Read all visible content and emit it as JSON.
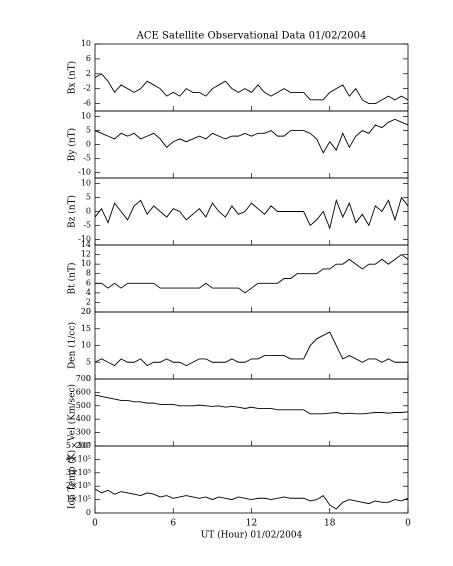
{
  "chart_data": [
    {
      "type": "line",
      "title": "ACE Satellite Observational Data   01/02/2004",
      "ylabel": "Bx (nT)",
      "ylim": [
        -8,
        10
      ],
      "yticks": [
        -6,
        -2,
        2,
        6,
        10
      ],
      "xlim": [
        0,
        24
      ],
      "x": [
        0,
        0.5,
        1,
        1.5,
        2,
        2.5,
        3,
        3.5,
        4,
        4.5,
        5,
        5.5,
        6,
        6.5,
        7,
        7.5,
        8,
        8.5,
        9,
        9.5,
        10,
        10.5,
        11,
        11.5,
        12,
        12.5,
        13,
        13.5,
        14,
        14.5,
        15,
        15.5,
        16,
        16.5,
        17,
        17.5,
        18,
        18.5,
        19,
        19.5,
        20,
        20.5,
        21,
        21.5,
        22,
        22.5,
        23,
        23.5,
        24
      ],
      "values": [
        1,
        2,
        0,
        -3,
        -1,
        -2,
        -3,
        -2,
        0,
        -1,
        -2,
        -4,
        -3,
        -4,
        -2,
        -3,
        -3,
        -4,
        -2,
        -1,
        0,
        -2,
        -3,
        -2,
        -3,
        -1,
        -3,
        -4,
        -3,
        -2,
        -3,
        -3,
        -3,
        -5,
        -5,
        -5,
        -3,
        -2,
        -1,
        -4,
        -2,
        -5,
        -6,
        -6,
        -5,
        -4,
        -5,
        -4,
        -5
      ],
      "color": "#000000"
    },
    {
      "type": "line",
      "ylabel": "By (nT)",
      "ylim": [
        -12,
        12
      ],
      "yticks": [
        -10,
        -5,
        0,
        5,
        10
      ],
      "xlim": [
        0,
        24
      ],
      "x": [
        0,
        0.5,
        1,
        1.5,
        2,
        2.5,
        3,
        3.5,
        4,
        4.5,
        5,
        5.5,
        6,
        6.5,
        7,
        7.5,
        8,
        8.5,
        9,
        9.5,
        10,
        10.5,
        11,
        11.5,
        12,
        12.5,
        13,
        13.5,
        14,
        14.5,
        15,
        15.5,
        16,
        16.5,
        17,
        17.5,
        18,
        18.5,
        19,
        19.5,
        20,
        20.5,
        21,
        21.5,
        22,
        22.5,
        23,
        23.5,
        24
      ],
      "values": [
        5,
        4,
        3,
        2,
        4,
        3,
        4,
        2,
        3,
        4,
        2,
        -1,
        1,
        2,
        1,
        2,
        3,
        2,
        4,
        3,
        2,
        3,
        3,
        4,
        3,
        4,
        4,
        5,
        3,
        3,
        5,
        5,
        5,
        4,
        2,
        -3,
        1,
        -2,
        4,
        -1,
        3,
        5,
        4,
        7,
        6,
        8,
        9,
        8,
        7
      ],
      "color": "#000000"
    },
    {
      "type": "line",
      "ylabel": "Bz (nT)",
      "ylim": [
        -12,
        12
      ],
      "yticks": [
        -10,
        -5,
        0,
        5,
        10
      ],
      "xlim": [
        0,
        24
      ],
      "x": [
        0,
        0.5,
        1,
        1.5,
        2,
        2.5,
        3,
        3.5,
        4,
        4.5,
        5,
        5.5,
        6,
        6.5,
        7,
        7.5,
        8,
        8.5,
        9,
        9.5,
        10,
        10.5,
        11,
        11.5,
        12,
        12.5,
        13,
        13.5,
        14,
        14.5,
        15,
        15.5,
        16,
        16.5,
        17,
        17.5,
        18,
        18.5,
        19,
        19.5,
        20,
        20.5,
        21,
        21.5,
        22,
        22.5,
        23,
        23.5,
        24
      ],
      "values": [
        -2,
        1,
        -4,
        3,
        0,
        -3,
        2,
        4,
        -1,
        2,
        0,
        -2,
        1,
        0,
        -3,
        -1,
        1,
        -2,
        3,
        0,
        -2,
        2,
        -1,
        0,
        3,
        1,
        -1,
        2,
        0,
        0,
        0,
        0,
        0,
        -5,
        -3,
        0,
        -6,
        4,
        -2,
        3,
        -4,
        -1,
        -5,
        2,
        0,
        4,
        -3,
        5,
        2
      ],
      "color": "#000000"
    },
    {
      "type": "line",
      "ylabel": "Bt (nT)",
      "ylim": [
        0,
        14
      ],
      "yticks": [
        0,
        2,
        4,
        6,
        8,
        10,
        12,
        14
      ],
      "xlim": [
        0,
        24
      ],
      "x": [
        0,
        0.5,
        1,
        1.5,
        2,
        2.5,
        3,
        3.5,
        4,
        4.5,
        5,
        5.5,
        6,
        6.5,
        7,
        7.5,
        8,
        8.5,
        9,
        9.5,
        10,
        10.5,
        11,
        11.5,
        12,
        12.5,
        13,
        13.5,
        14,
        14.5,
        15,
        15.5,
        16,
        16.5,
        17,
        17.5,
        18,
        18.5,
        19,
        19.5,
        20,
        20.5,
        21,
        21.5,
        22,
        22.5,
        23,
        23.5,
        24
      ],
      "values": [
        6,
        6,
        5,
        6,
        5,
        6,
        6,
        6,
        6,
        6,
        5,
        5,
        5,
        5,
        5,
        5,
        5,
        6,
        5,
        5,
        5,
        5,
        5,
        4,
        5,
        6,
        6,
        6,
        6,
        7,
        7,
        8,
        8,
        8,
        8,
        9,
        9,
        10,
        10,
        11,
        10,
        9,
        10,
        10,
        11,
        10,
        11,
        12,
        11
      ],
      "color": "#000000"
    },
    {
      "type": "line",
      "ylabel": "Den (1/cc)",
      "ylim": [
        0,
        20
      ],
      "yticks": [
        0,
        5,
        10,
        15,
        20
      ],
      "xlim": [
        0,
        24
      ],
      "x": [
        0,
        0.5,
        1,
        1.5,
        2,
        2.5,
        3,
        3.5,
        4,
        4.5,
        5,
        5.5,
        6,
        6.5,
        7,
        7.5,
        8,
        8.5,
        9,
        9.5,
        10,
        10.5,
        11,
        11.5,
        12,
        12.5,
        13,
        13.5,
        14,
        14.5,
        15,
        15.5,
        16,
        16.5,
        17,
        17.5,
        18,
        18.5,
        19,
        19.5,
        20,
        20.5,
        21,
        21.5,
        22,
        22.5,
        23,
        23.5,
        24
      ],
      "values": [
        5,
        6,
        5,
        4,
        6,
        5,
        5,
        6,
        4,
        5,
        5,
        6,
        5,
        5,
        4,
        5,
        6,
        6,
        5,
        5,
        5,
        6,
        5,
        5,
        6,
        6,
        7,
        7,
        7,
        7,
        6,
        6,
        6,
        10,
        12,
        13,
        14,
        10,
        6,
        7,
        6,
        5,
        6,
        6,
        5,
        6,
        5,
        5,
        5
      ],
      "color": "#000000"
    },
    {
      "type": "line",
      "ylabel": "Vel (Km/sec)",
      "ylim": [
        200,
        700
      ],
      "yticks": [
        200,
        300,
        400,
        500,
        600,
        700
      ],
      "xlim": [
        0,
        24
      ],
      "x": [
        0,
        0.5,
        1,
        1.5,
        2,
        2.5,
        3,
        3.5,
        4,
        4.5,
        5,
        5.5,
        6,
        6.5,
        7,
        7.5,
        8,
        8.5,
        9,
        9.5,
        10,
        10.5,
        11,
        11.5,
        12,
        12.5,
        13,
        13.5,
        14,
        14.5,
        15,
        15.5,
        16,
        16.5,
        17,
        17.5,
        18,
        18.5,
        19,
        19.5,
        20,
        20.5,
        21,
        21.5,
        22,
        22.5,
        23,
        23.5,
        24
      ],
      "values": [
        580,
        570,
        560,
        550,
        540,
        540,
        530,
        530,
        520,
        520,
        510,
        510,
        510,
        500,
        500,
        500,
        505,
        500,
        495,
        500,
        490,
        495,
        490,
        480,
        490,
        480,
        480,
        480,
        470,
        470,
        470,
        470,
        470,
        440,
        440,
        440,
        445,
        450,
        440,
        445,
        440,
        440,
        445,
        450,
        450,
        445,
        450,
        450,
        455
      ],
      "color": "#000000"
    },
    {
      "type": "line",
      "ylabel": "Ion Temp (K)",
      "xlabel": "UT (Hour)   01/02/2004",
      "ylim": [
        0,
        500000
      ],
      "yticks": [
        0,
        {
          "value": 100000,
          "label": "1×10⁵"
        },
        {
          "value": 200000,
          "label": "2×10⁵"
        },
        {
          "value": 300000,
          "label": "3×10⁵"
        },
        {
          "value": 400000,
          "label": "4×10⁵"
        },
        {
          "value": 500000,
          "label": "5×10⁵"
        }
      ],
      "xlim": [
        0,
        24
      ],
      "xticks": [
        0,
        6,
        12,
        18,
        {
          "value": 24,
          "label": "0"
        }
      ],
      "x": [
        0,
        0.5,
        1,
        1.5,
        2,
        2.5,
        3,
        3.5,
        4,
        4.5,
        5,
        5.5,
        6,
        6.5,
        7,
        7.5,
        8,
        8.5,
        9,
        9.5,
        10,
        10.5,
        11,
        11.5,
        12,
        12.5,
        13,
        13.5,
        14,
        14.5,
        15,
        15.5,
        16,
        16.5,
        17,
        17.5,
        18,
        18.5,
        19,
        19.5,
        20,
        20.5,
        21,
        21.5,
        22,
        22.5,
        23,
        23.5,
        24
      ],
      "values": [
        180000,
        150000,
        170000,
        140000,
        160000,
        150000,
        140000,
        130000,
        150000,
        140000,
        120000,
        130000,
        110000,
        120000,
        130000,
        120000,
        110000,
        120000,
        100000,
        120000,
        110000,
        100000,
        120000,
        110000,
        100000,
        110000,
        110000,
        100000,
        110000,
        120000,
        110000,
        110000,
        110000,
        90000,
        100000,
        130000,
        60000,
        30000,
        80000,
        100000,
        90000,
        80000,
        70000,
        90000,
        80000,
        80000,
        100000,
        90000,
        110000
      ],
      "color": "#000000"
    }
  ]
}
